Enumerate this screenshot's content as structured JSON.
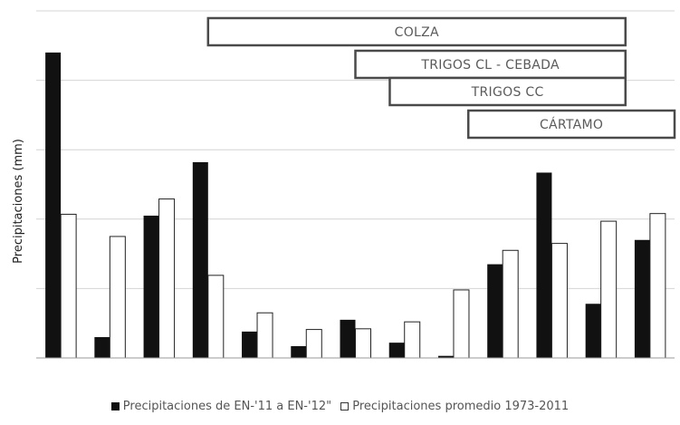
{
  "chart_data": {
    "type": "bar",
    "ylabel": "Precipitaciones (mm)",
    "ylim": [
      0,
      5
    ],
    "grid": true,
    "x_tick_labels_shown": false,
    "y_tick_labels_shown": false,
    "categories": [
      "1",
      "2",
      "3",
      "4",
      "5",
      "6",
      "7",
      "8",
      "9",
      "10",
      "11",
      "12",
      "13"
    ],
    "series": [
      {
        "name": "Precipitaciones de EN-'11 a EN-'12\"",
        "color": "#111111",
        "values": [
          4.4,
          0.3,
          2.05,
          2.82,
          0.38,
          0.17,
          0.55,
          0.22,
          0.03,
          1.35,
          2.67,
          0.78,
          1.7
        ]
      },
      {
        "name": "Precipitaciones promedio 1973-2011",
        "color": "#ffffff",
        "values": [
          2.07,
          1.75,
          2.29,
          1.19,
          0.65,
          0.41,
          0.42,
          0.52,
          0.98,
          1.55,
          1.65,
          1.97,
          2.08
        ]
      }
    ],
    "annotations": [
      {
        "label": "COLZA",
        "from": 3.5,
        "to": 12.0
      },
      {
        "label": "TRIGOS CL - CEBADA",
        "from": 6.5,
        "to": 12.0
      },
      {
        "label": "TRIGOS CC",
        "from": 7.2,
        "to": 12.0
      },
      {
        "label": "CÁRTAMO",
        "from": 8.8,
        "to": 13.0
      }
    ],
    "legend_placement": "bottom"
  }
}
